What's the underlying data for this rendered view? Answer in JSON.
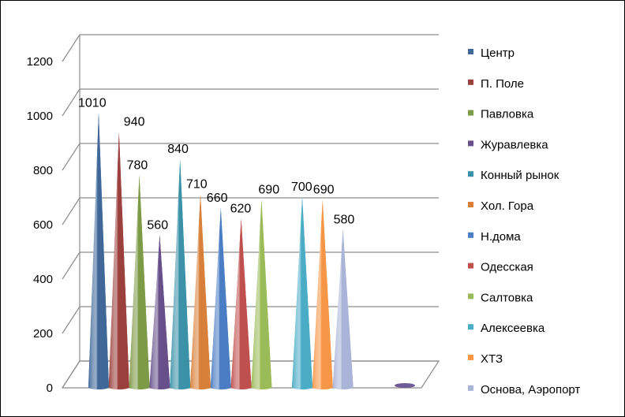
{
  "chart_data": {
    "type": "bar",
    "bar_shape": "cone",
    "view": "3d-perspective",
    "title": "",
    "xlabel": "",
    "ylabel": "",
    "ylim": [
      0,
      1200
    ],
    "yticks": [
      "0",
      "200",
      "400",
      "600",
      "800",
      "1000",
      "1200"
    ],
    "grid": true,
    "legend_position": "right",
    "categories": [
      ""
    ],
    "series": [
      {
        "name": "Центр",
        "value": 1010,
        "label": "1010",
        "color": "#3f6899"
      },
      {
        "name": "П. Поле",
        "value": 940,
        "label": "940",
        "color": "#9c403d"
      },
      {
        "name": "Павловка",
        "value": 780,
        "label": "780",
        "color": "#7d9a47"
      },
      {
        "name": "Журавлевка",
        "value": 560,
        "label": "560",
        "color": "#67508a"
      },
      {
        "name": "Конный рынок",
        "value": 840,
        "label": "840",
        "color": "#3a91a8"
      },
      {
        "name": "Хол. Гора",
        "value": 710,
        "label": "710",
        "color": "#d8803a"
      },
      {
        "name": "Н.дома",
        "value": 660,
        "label": "660",
        "color": "#4a7dc3"
      },
      {
        "name": "Одесская",
        "value": 620,
        "label": "620",
        "color": "#c0504d"
      },
      {
        "name": "Салтовка",
        "value": 690,
        "label": "690",
        "color": "#9bbb59"
      },
      {
        "name": "Алексеевка",
        "value": 700,
        "label": "700",
        "color": "#4bacc6"
      },
      {
        "name": "ХТЗ",
        "value": 690,
        "label": "690",
        "color": "#f79646"
      },
      {
        "name": "Основа, Аэропорт",
        "value": 580,
        "label": "580",
        "color": "#aab4d8"
      }
    ]
  }
}
